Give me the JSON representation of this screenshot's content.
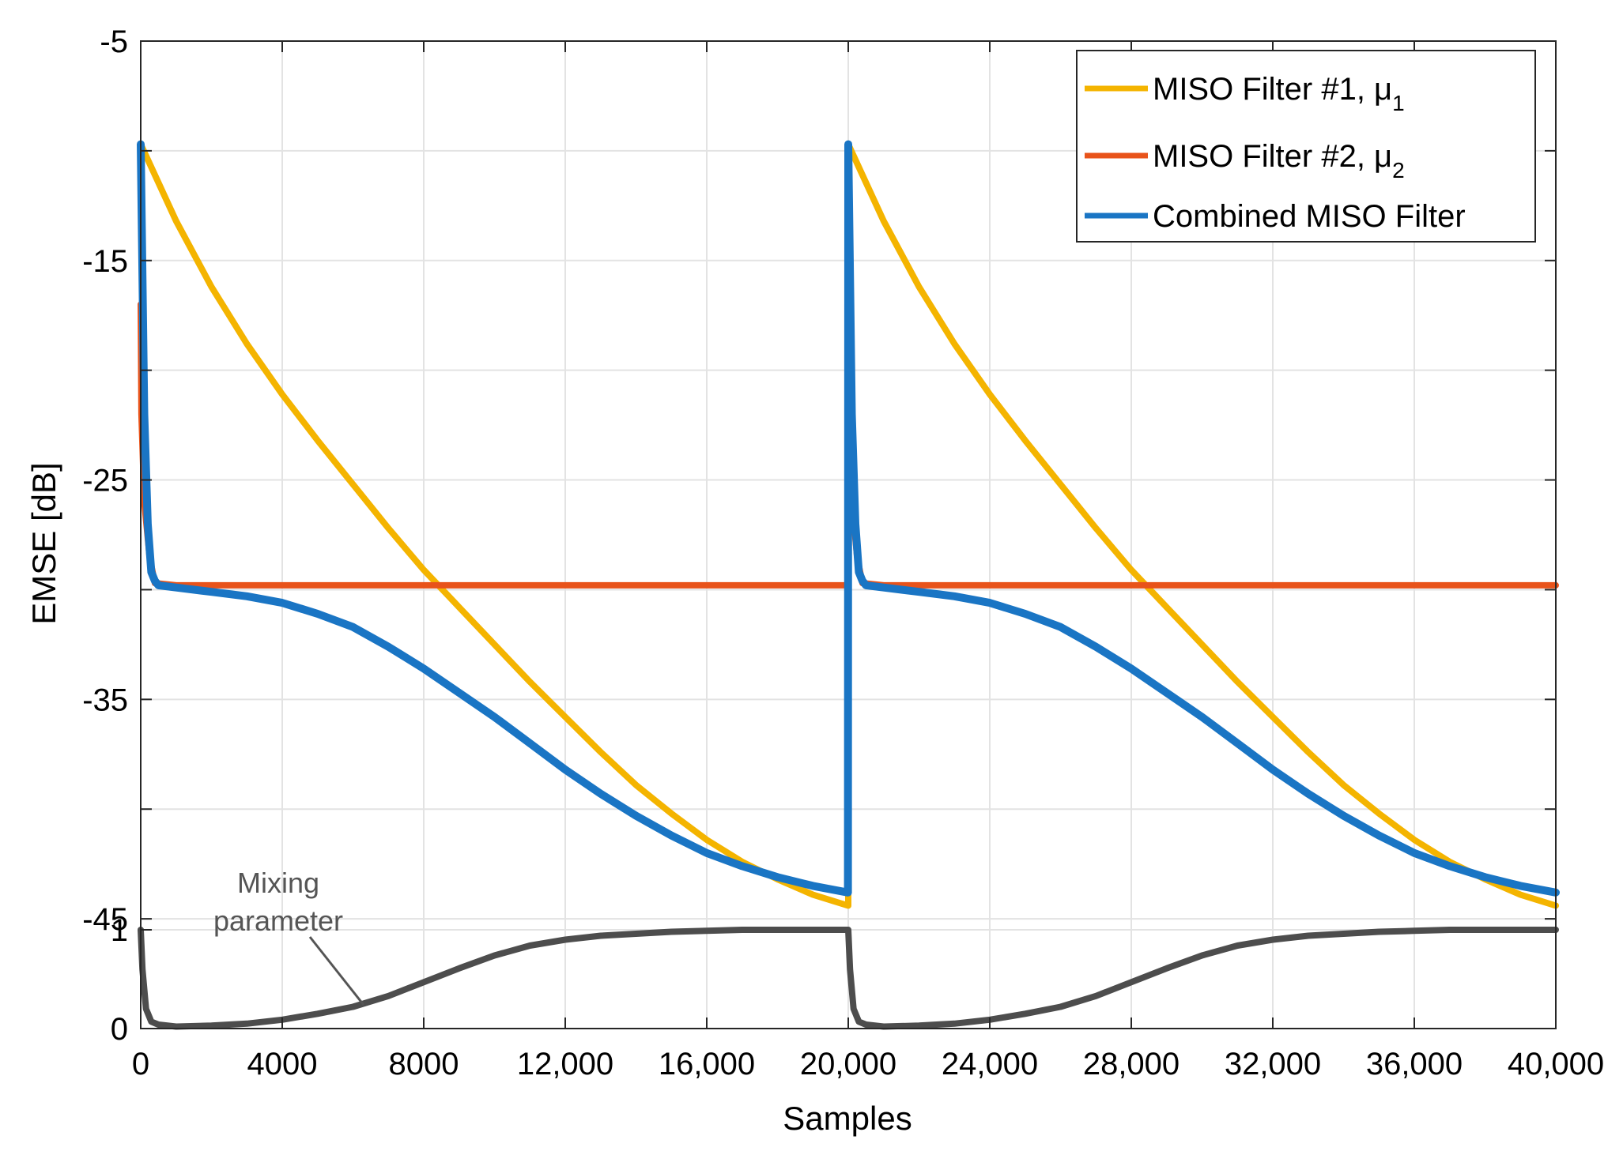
{
  "chart_data": {
    "type": "line",
    "title": "",
    "xlabel": "Samples",
    "ylabel": "EMSE [dB]",
    "xlim": [
      0,
      40000
    ],
    "ylim": [
      -50,
      -5
    ],
    "grid": true,
    "legend_position": "top-right",
    "x_ticks": [
      0,
      4000,
      8000,
      12000,
      16000,
      20000,
      24000,
      28000,
      32000,
      36000,
      40000
    ],
    "x_tick_labels": [
      "0",
      "4000",
      "8000",
      "12,000",
      "16,000",
      "20,000",
      "24,000",
      "28,000",
      "32,000",
      "36,000",
      "40,000"
    ],
    "y_ticks": [
      -5,
      -15,
      -25,
      -35,
      -45
    ],
    "y_tick_labels": [
      "-5",
      "-15",
      "-25",
      "-35",
      "-45"
    ],
    "mixing_axis": {
      "ylim": [
        0,
        1
      ],
      "tick_labels": [
        "1",
        "0"
      ]
    },
    "series": [
      {
        "name": "MISO Filter #1, μ1",
        "legend_main": "MISO Filter #1, μ",
        "legend_sub": "1",
        "color": "#F4B400",
        "x": [
          0,
          1000,
          2000,
          3000,
          4000,
          5000,
          6000,
          7000,
          8000,
          9000,
          10000,
          11000,
          12000,
          13000,
          14000,
          15000,
          16000,
          17000,
          18000,
          19000,
          20000,
          20000,
          21000,
          22000,
          23000,
          24000,
          25000,
          26000,
          27000,
          28000,
          29000,
          30000,
          31000,
          32000,
          33000,
          34000,
          35000,
          36000,
          37000,
          38000,
          39000,
          40000
        ],
        "y": [
          -9.7,
          -13.2,
          -16.2,
          -18.8,
          -21.1,
          -23.2,
          -25.2,
          -27.2,
          -29.1,
          -30.8,
          -32.5,
          -34.2,
          -35.8,
          -37.4,
          -38.9,
          -40.2,
          -41.4,
          -42.4,
          -43.2,
          -43.9,
          -44.4,
          -9.7,
          -13.2,
          -16.2,
          -18.8,
          -21.1,
          -23.2,
          -25.2,
          -27.2,
          -29.1,
          -30.8,
          -32.5,
          -34.2,
          -35.8,
          -37.4,
          -38.9,
          -40.2,
          -41.4,
          -42.4,
          -43.2,
          -43.9,
          -44.4
        ]
      },
      {
        "name": "MISO Filter #2, μ2",
        "legend_main": "MISO Filter #2, μ",
        "legend_sub": "2",
        "color": "#E8531A",
        "x": [
          0,
          20,
          100,
          250,
          400,
          1000,
          5000,
          10000,
          15000,
          19990,
          20000,
          20020,
          20100,
          20250,
          20400,
          21000,
          25000,
          30000,
          35000,
          40000
        ],
        "y": [
          -17,
          -22,
          -26,
          -28.5,
          -29.7,
          -29.8,
          -29.8,
          -29.8,
          -29.8,
          -29.8,
          -17,
          -22,
          -26,
          -28.5,
          -29.7,
          -29.8,
          -29.8,
          -29.8,
          -29.8,
          -29.8
        ]
      },
      {
        "name": "Combined MISO Filter",
        "legend_main": "Combined MISO Filter",
        "legend_sub": "",
        "color": "#1A75C4",
        "x": [
          0,
          100,
          200,
          300,
          400,
          500,
          1000,
          2000,
          3000,
          4000,
          5000,
          6000,
          7000,
          8000,
          9000,
          10000,
          11000,
          12000,
          13000,
          14000,
          15000,
          16000,
          17000,
          18000,
          19000,
          19990,
          20000,
          20100,
          20200,
          20300,
          20400,
          20500,
          21000,
          22000,
          23000,
          24000,
          25000,
          26000,
          27000,
          28000,
          29000,
          30000,
          31000,
          32000,
          33000,
          34000,
          35000,
          36000,
          37000,
          38000,
          39000,
          40000
        ],
        "y": [
          -9.7,
          -22,
          -27,
          -29.2,
          -29.6,
          -29.8,
          -29.9,
          -30.1,
          -30.3,
          -30.6,
          -31.1,
          -31.7,
          -32.6,
          -33.6,
          -34.7,
          -35.8,
          -37.0,
          -38.2,
          -39.3,
          -40.3,
          -41.2,
          -42.0,
          -42.6,
          -43.1,
          -43.5,
          -43.8,
          -9.7,
          -22,
          -27,
          -29.2,
          -29.6,
          -29.8,
          -29.9,
          -30.1,
          -30.3,
          -30.6,
          -31.1,
          -31.7,
          -32.6,
          -33.6,
          -34.7,
          -35.8,
          -37.0,
          -38.2,
          -39.3,
          -40.3,
          -41.2,
          -42.0,
          -42.6,
          -43.1,
          -43.5,
          -43.8
        ]
      },
      {
        "name": "Mixing parameter",
        "color": "#4D4D4D",
        "axis": "mixing",
        "x": [
          0,
          50,
          150,
          300,
          500,
          1000,
          2000,
          3000,
          4000,
          5000,
          6000,
          7000,
          8000,
          9000,
          10000,
          11000,
          12000,
          13000,
          14000,
          15000,
          16000,
          17000,
          18000,
          19000,
          19990,
          20000,
          20050,
          20150,
          20300,
          20500,
          21000,
          22000,
          23000,
          24000,
          25000,
          26000,
          27000,
          28000,
          29000,
          30000,
          31000,
          32000,
          33000,
          34000,
          35000,
          36000,
          37000,
          38000,
          39000,
          40000
        ],
        "y": [
          1.0,
          0.6,
          0.2,
          0.07,
          0.04,
          0.02,
          0.03,
          0.05,
          0.09,
          0.15,
          0.22,
          0.33,
          0.47,
          0.61,
          0.74,
          0.84,
          0.9,
          0.94,
          0.96,
          0.98,
          0.99,
          1.0,
          1.0,
          1.0,
          1.0,
          1.0,
          0.6,
          0.2,
          0.07,
          0.04,
          0.02,
          0.03,
          0.05,
          0.09,
          0.15,
          0.22,
          0.33,
          0.47,
          0.61,
          0.74,
          0.84,
          0.9,
          0.94,
          0.96,
          0.98,
          0.99,
          1.0,
          1.0,
          1.0,
          1.0
        ]
      }
    ],
    "annotations": [
      {
        "text_line1": "Mixing",
        "text_line2": "parameter",
        "points_to": "Mixing parameter"
      }
    ]
  }
}
